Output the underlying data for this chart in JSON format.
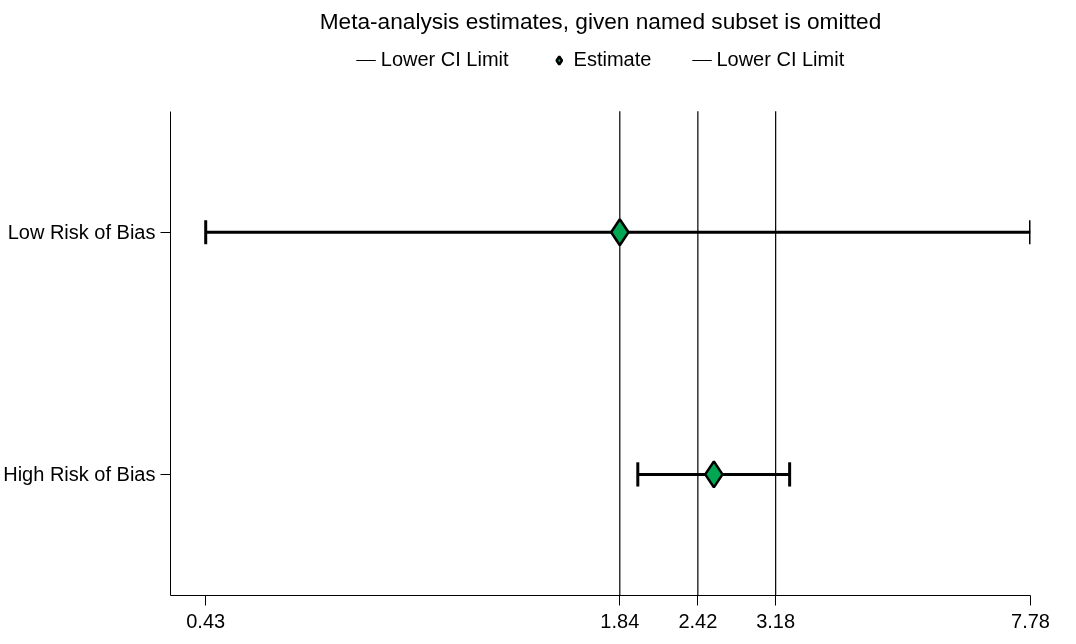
{
  "chart_data": {
    "type": "scatter",
    "title": "Meta-analysis estimates, given named subset is omitted",
    "orientation": "horizontal",
    "categories": [
      "Low Risk of Bias",
      "High Risk of Bias"
    ],
    "series": [
      {
        "name": "Estimate",
        "color": "#00a651",
        "values": [
          1.84,
          2.56
        ],
        "errors": [
          [
            0.43,
            7.78
          ],
          [
            1.96,
            3.34
          ]
        ]
      }
    ],
    "log": "x",
    "xlim": [
      0.38,
      7.78
    ],
    "xticks": [
      0.43,
      1.84,
      2.42,
      3.18,
      7.78
    ],
    "ref_lines": [
      {
        "axis": "x",
        "value": 1.84,
        "label": "Lower CI Limit",
        "color": "#000000"
      },
      {
        "axis": "x",
        "value": 2.42,
        "color": "#000000"
      },
      {
        "axis": "x",
        "value": 3.18,
        "label": "Lower CI Limit",
        "color": "#000000"
      }
    ],
    "marker": "diamond",
    "grid": false,
    "legend": "top"
  }
}
